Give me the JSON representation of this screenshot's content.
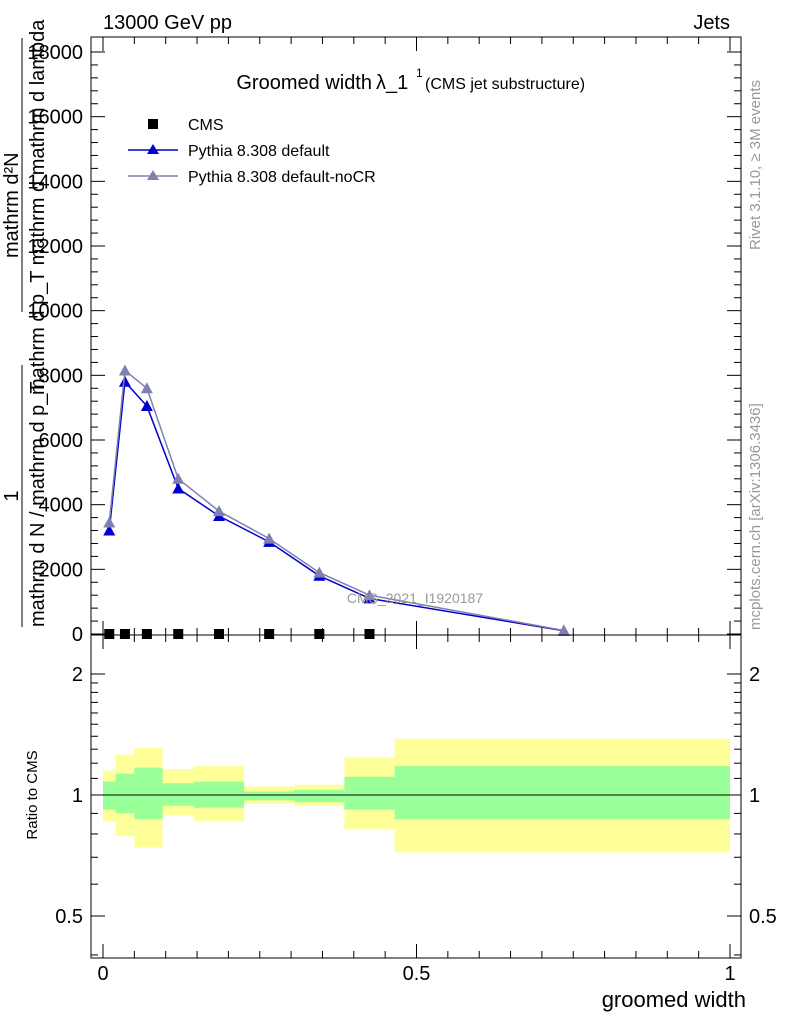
{
  "header": {
    "energy_label": "13000 GeV pp",
    "process_label": "Jets",
    "side_label_top": "Rivet 3.1.10, ≥ 3M events",
    "side_label_bottom": "mcplots.cern.ch [arXiv:1306.3436]"
  },
  "colors": {
    "cms": "#000000",
    "pythia_default": "#0000cc",
    "pythia_nocr": "#8080b0",
    "band_outer": "#ffff99",
    "band_inner": "#99ff99"
  },
  "chart_data": [
    {
      "type": "line",
      "title": "Groomed width",
      "title_symbol": "λ_1",
      "title_superscript": "1",
      "subtitle": "(CMS jet substructure)",
      "ylabel_numerator": "mathrm d²N",
      "ylabel_denominator": "mathrm d p_T mathrm d mathrm d lambda",
      "ylabel_prefactor": "1",
      "ylabel_prefactor_den": "mathrm d N / mathrm d p_T",
      "watermark": "CMS_2021_I1920187",
      "xlim": [
        0,
        1
      ],
      "ylim": [
        0,
        18500
      ],
      "yticks": [
        "0",
        "2000",
        "4000",
        "6000",
        "8000",
        "10000",
        "12000",
        "14000",
        "16000",
        "18000"
      ],
      "legend_placement": "top-left",
      "series": [
        {
          "name": "CMS",
          "marker": "square",
          "x": [
            0.01,
            0.035,
            0.07,
            0.12,
            0.185,
            0.265,
            0.345,
            0.425
          ],
          "y": [
            0,
            0,
            0,
            0,
            0,
            0,
            0,
            0
          ]
        },
        {
          "name": "Pythia 8.308 default",
          "marker": "triangle",
          "x": [
            0.01,
            0.035,
            0.07,
            0.12,
            0.185,
            0.265,
            0.345,
            0.425,
            0.735
          ],
          "y": [
            3200,
            7800,
            7050,
            4500,
            3650,
            2850,
            1800,
            1100,
            100
          ]
        },
        {
          "name": "Pythia 8.308 default-noCR",
          "marker": "triangle",
          "x": [
            0.01,
            0.035,
            0.07,
            0.12,
            0.185,
            0.265,
            0.345,
            0.425,
            0.735
          ],
          "y": [
            3450,
            8150,
            7600,
            4800,
            3800,
            2950,
            1900,
            1200,
            110
          ]
        }
      ]
    },
    {
      "type": "area",
      "ylabel": "Ratio to CMS",
      "xlabel": "groomed width",
      "xlim": [
        0,
        1
      ],
      "ylim": [
        0.38,
        2.25
      ],
      "xticks": [
        "0",
        "0.5",
        "1"
      ],
      "yticks": [
        "0.5",
        "1",
        "2"
      ],
      "bins": [
        {
          "lo": 0.0,
          "hi": 0.02,
          "inner": [
            0.92,
            1.08
          ],
          "outer": [
            0.86,
            1.15
          ]
        },
        {
          "lo": 0.02,
          "hi": 0.05,
          "inner": [
            0.9,
            1.13
          ],
          "outer": [
            0.79,
            1.26
          ]
        },
        {
          "lo": 0.05,
          "hi": 0.095,
          "inner": [
            0.87,
            1.17
          ],
          "outer": [
            0.74,
            1.31
          ]
        },
        {
          "lo": 0.095,
          "hi": 0.145,
          "inner": [
            0.94,
            1.07
          ],
          "outer": [
            0.89,
            1.16
          ]
        },
        {
          "lo": 0.145,
          "hi": 0.225,
          "inner": [
            0.93,
            1.08
          ],
          "outer": [
            0.86,
            1.18
          ]
        },
        {
          "lo": 0.225,
          "hi": 0.305,
          "inner": [
            0.97,
            1.02
          ],
          "outer": [
            0.95,
            1.05
          ]
        },
        {
          "lo": 0.305,
          "hi": 0.385,
          "inner": [
            0.96,
            1.03
          ],
          "outer": [
            0.94,
            1.06
          ]
        },
        {
          "lo": 0.385,
          "hi": 0.465,
          "inner": [
            0.92,
            1.11
          ],
          "outer": [
            0.82,
            1.24
          ]
        },
        {
          "lo": 0.465,
          "hi": 1.0,
          "inner": [
            0.87,
            1.18
          ],
          "outer": [
            0.72,
            1.38
          ]
        }
      ],
      "reference_line": 1
    }
  ]
}
